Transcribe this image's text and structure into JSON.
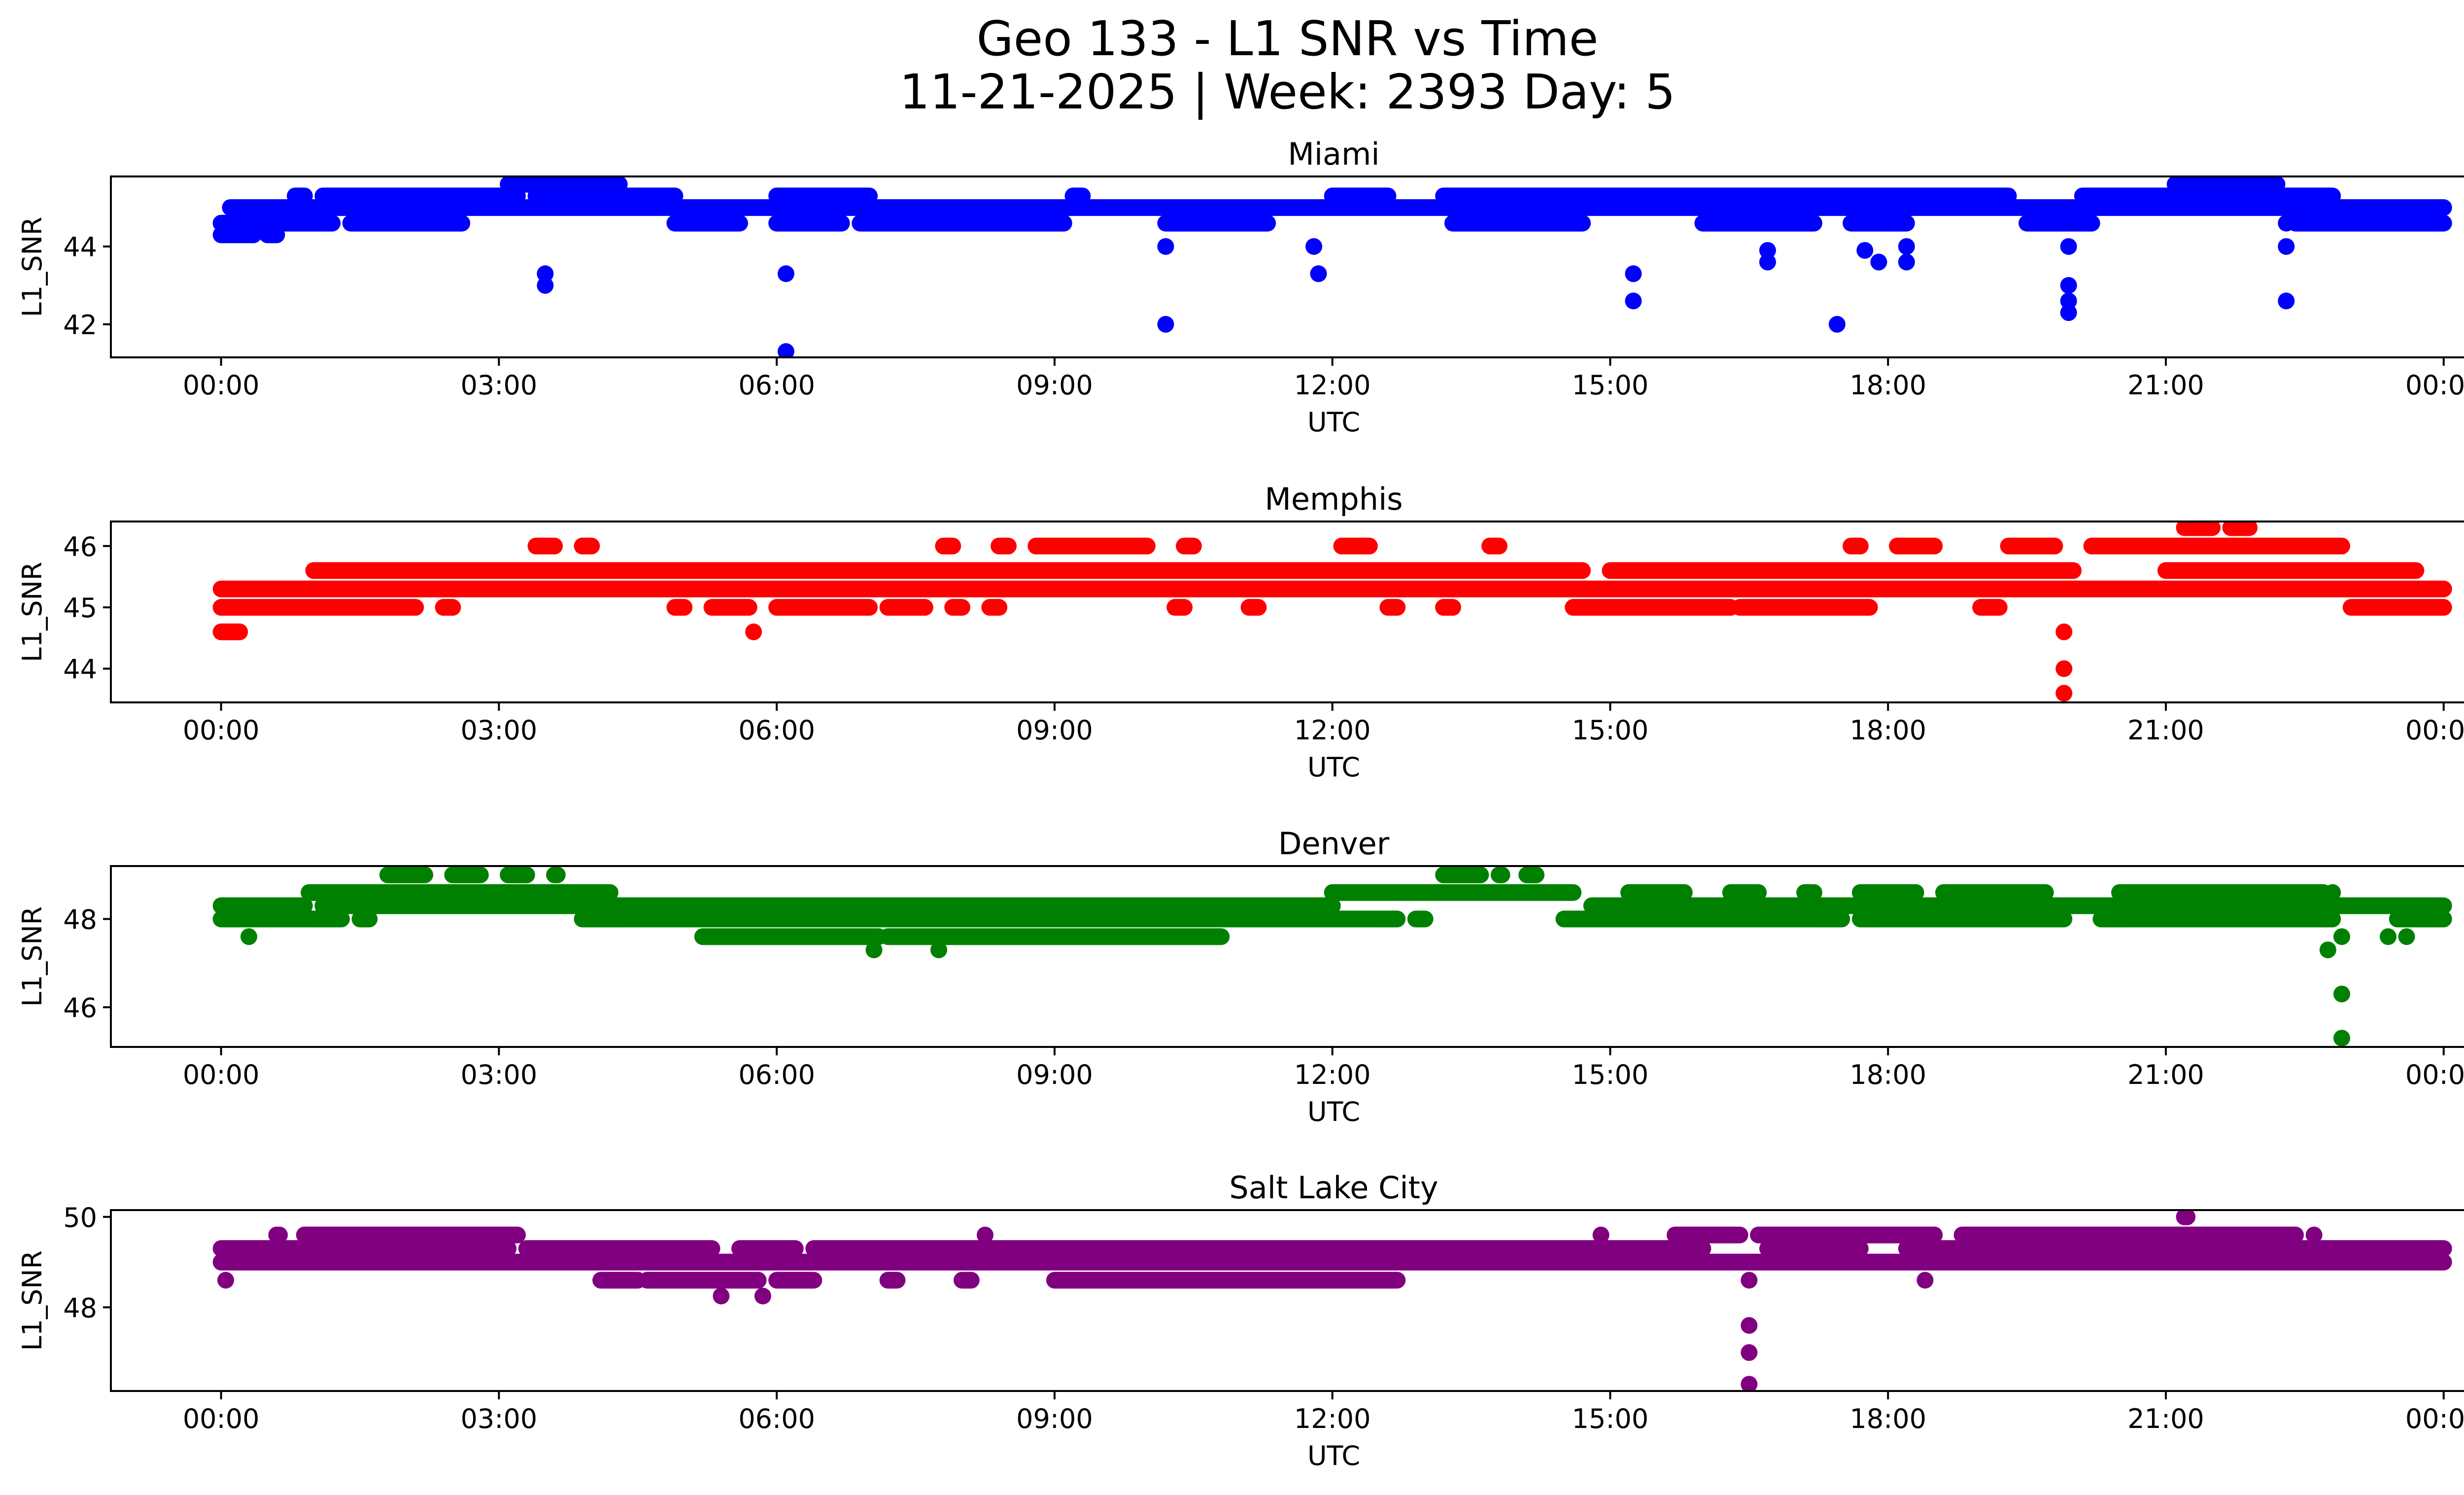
{
  "figure": {
    "title_line1": "Geo 133 - L1 SNR vs Time",
    "title_line2": "11-21-2025 | Week: 2393 Day: 5"
  },
  "chart_data": [
    {
      "type": "scatter",
      "title": "Miami",
      "xlabel": "UTC",
      "ylabel": "L1_SNR",
      "color": "#0000ff",
      "xlim_hours": [
        -1.19,
        25.22
      ],
      "ylim": [
        41.15,
        45.8
      ],
      "yticks": [
        42,
        44
      ],
      "ytick_labels": [
        "42",
        "44"
      ],
      "xticks_hours": [
        0,
        3,
        6,
        9,
        12,
        15,
        18,
        21,
        24
      ],
      "xtick_labels": [
        "00:00",
        "03:00",
        "06:00",
        "09:00",
        "12:00",
        "15:00",
        "18:00",
        "21:00",
        "00:00"
      ],
      "bands": [
        {
          "y": 44.3,
          "ranges": [
            [
              0.0,
              0.35
            ],
            [
              0.5,
              0.6
            ]
          ]
        },
        {
          "y": 44.6,
          "ranges": [
            [
              0.0,
              1.2
            ],
            [
              1.4,
              2.6
            ],
            [
              4.9,
              5.6
            ],
            [
              6.0,
              6.7
            ],
            [
              6.9,
              9.1
            ],
            [
              10.2,
              11.3
            ],
            [
              13.3,
              14.7
            ],
            [
              16.0,
              17.2
            ],
            [
              17.6,
              18.2
            ],
            [
              19.5,
              20.2
            ],
            [
              22.4,
              24.0
            ]
          ]
        },
        {
          "y": 45.0,
          "ranges": [
            [
              0.1,
              24.0
            ]
          ]
        },
        {
          "y": 45.3,
          "ranges": [
            [
              0.8,
              0.9
            ],
            [
              1.1,
              3.2
            ],
            [
              3.4,
              4.9
            ],
            [
              6.0,
              7.0
            ],
            [
              9.2,
              9.3
            ],
            [
              12.0,
              12.6
            ],
            [
              13.2,
              19.3
            ],
            [
              20.1,
              22.8
            ]
          ]
        },
        {
          "y": 45.6,
          "ranges": [
            [
              3.1,
              4.3
            ],
            [
              21.1,
              22.2
            ]
          ]
        }
      ],
      "outliers": [
        {
          "x": 3.5,
          "y": 43.3
        },
        {
          "x": 3.5,
          "y": 43.0
        },
        {
          "x": 6.1,
          "y": 43.3
        },
        {
          "x": 6.1,
          "y": 41.3
        },
        {
          "x": 10.2,
          "y": 44.0
        },
        {
          "x": 10.2,
          "y": 42.0
        },
        {
          "x": 11.8,
          "y": 44.0
        },
        {
          "x": 11.85,
          "y": 43.3
        },
        {
          "x": 15.25,
          "y": 43.3
        },
        {
          "x": 15.25,
          "y": 42.6
        },
        {
          "x": 16.7,
          "y": 43.9
        },
        {
          "x": 16.7,
          "y": 43.6
        },
        {
          "x": 17.45,
          "y": 42.0
        },
        {
          "x": 17.75,
          "y": 43.9
        },
        {
          "x": 17.9,
          "y": 43.6
        },
        {
          "x": 18.2,
          "y": 44.0
        },
        {
          "x": 18.2,
          "y": 43.6
        },
        {
          "x": 19.95,
          "y": 44.0
        },
        {
          "x": 19.95,
          "y": 43.0
        },
        {
          "x": 19.95,
          "y": 42.6
        },
        {
          "x": 19.95,
          "y": 42.3
        },
        {
          "x": 22.3,
          "y": 44.6
        },
        {
          "x": 22.3,
          "y": 44.0
        },
        {
          "x": 22.3,
          "y": 42.6
        }
      ]
    },
    {
      "type": "scatter",
      "title": "Memphis",
      "xlabel": "UTC",
      "ylabel": "L1_SNR",
      "color": "#ff0000",
      "xlim_hours": [
        -1.19,
        25.22
      ],
      "ylim": [
        43.45,
        46.4
      ],
      "yticks": [
        44,
        45,
        46
      ],
      "ytick_labels": [
        "44",
        "45",
        "46"
      ],
      "xticks_hours": [
        0,
        3,
        6,
        9,
        12,
        15,
        18,
        21,
        24
      ],
      "xtick_labels": [
        "00:00",
        "03:00",
        "06:00",
        "09:00",
        "12:00",
        "15:00",
        "18:00",
        "21:00",
        "00:00"
      ],
      "bands": [
        {
          "y": 44.6,
          "ranges": [
            [
              0.0,
              0.2
            ]
          ]
        },
        {
          "y": 45.0,
          "ranges": [
            [
              0.0,
              2.1
            ],
            [
              2.4,
              2.5
            ],
            [
              4.9,
              5.0
            ],
            [
              5.3,
              5.7
            ],
            [
              6.0,
              7.0
            ],
            [
              7.2,
              7.6
            ],
            [
              7.9,
              8.0
            ],
            [
              8.3,
              8.4
            ],
            [
              10.3,
              10.4
            ],
            [
              11.1,
              11.2
            ],
            [
              12.6,
              12.7
            ],
            [
              13.2,
              13.3
            ],
            [
              14.6,
              16.3
            ],
            [
              16.4,
              17.8
            ],
            [
              19.0,
              19.2
            ],
            [
              23.0,
              24.0
            ]
          ]
        },
        {
          "y": 45.3,
          "ranges": [
            [
              0.0,
              24.0
            ]
          ]
        },
        {
          "y": 45.6,
          "ranges": [
            [
              1.0,
              14.7
            ],
            [
              15.0,
              20.0
            ],
            [
              21.0,
              23.7
            ]
          ]
        },
        {
          "y": 46.0,
          "ranges": [
            [
              3.4,
              3.6
            ],
            [
              3.9,
              4.0
            ],
            [
              7.8,
              7.9
            ],
            [
              8.4,
              8.5
            ],
            [
              8.8,
              10.0
            ],
            [
              10.4,
              10.5
            ],
            [
              12.1,
              12.4
            ],
            [
              13.7,
              13.8
            ],
            [
              17.6,
              17.7
            ],
            [
              18.1,
              18.5
            ],
            [
              19.3,
              19.8
            ],
            [
              20.2,
              22.9
            ]
          ]
        },
        {
          "y": 46.3,
          "ranges": [
            [
              21.2,
              21.5
            ],
            [
              21.7,
              21.9
            ]
          ]
        }
      ],
      "outliers": [
        {
          "x": 5.75,
          "y": 44.6
        },
        {
          "x": 19.9,
          "y": 44.6
        },
        {
          "x": 19.9,
          "y": 44.0
        },
        {
          "x": 19.9,
          "y": 43.6
        }
      ]
    },
    {
      "type": "scatter",
      "title": "Denver",
      "xlabel": "UTC",
      "ylabel": "L1_SNR",
      "color": "#008000",
      "xlim_hours": [
        -1.19,
        25.22
      ],
      "ylim": [
        45.1,
        49.2
      ],
      "yticks": [
        46,
        48
      ],
      "ytick_labels": [
        "46",
        "48"
      ],
      "xticks_hours": [
        0,
        3,
        6,
        9,
        12,
        15,
        18,
        21,
        24
      ],
      "xtick_labels": [
        "00:00",
        "03:00",
        "06:00",
        "09:00",
        "12:00",
        "15:00",
        "18:00",
        "21:00",
        "00:00"
      ],
      "bands": [
        {
          "y": 47.6,
          "ranges": [
            [
              5.2,
              7.1
            ],
            [
              7.2,
              10.8
            ]
          ]
        },
        {
          "y": 48.0,
          "ranges": [
            [
              0.0,
              1.3
            ],
            [
              1.5,
              1.6
            ],
            [
              3.9,
              12.7
            ],
            [
              12.9,
              13.0
            ],
            [
              14.5,
              17.5
            ],
            [
              17.7,
              19.9
            ],
            [
              20.3,
              22.8
            ],
            [
              23.5,
              24.0
            ]
          ]
        },
        {
          "y": 48.3,
          "ranges": [
            [
              0.0,
              0.9
            ],
            [
              1.1,
              12.0
            ],
            [
              14.8,
              24.0
            ]
          ]
        },
        {
          "y": 48.6,
          "ranges": [
            [
              0.95,
              4.2
            ],
            [
              12.0,
              14.6
            ],
            [
              15.2,
              15.8
            ],
            [
              16.3,
              16.6
            ],
            [
              17.1,
              17.2
            ],
            [
              17.7,
              18.3
            ],
            [
              18.6,
              19.7
            ],
            [
              20.5,
              22.7
            ]
          ]
        },
        {
          "y": 49.0,
          "ranges": [
            [
              1.8,
              2.2
            ],
            [
              2.5,
              2.8
            ],
            [
              3.1,
              3.3
            ],
            [
              3.6,
              3.65
            ],
            [
              13.2,
              13.6
            ],
            [
              13.8,
              13.85
            ],
            [
              14.1,
              14.2
            ]
          ]
        }
      ],
      "outliers": [
        {
          "x": 0.3,
          "y": 47.6
        },
        {
          "x": 7.05,
          "y": 47.3
        },
        {
          "x": 7.75,
          "y": 47.3
        },
        {
          "x": 22.75,
          "y": 47.3
        },
        {
          "x": 22.8,
          "y": 48.6
        },
        {
          "x": 22.9,
          "y": 47.6
        },
        {
          "x": 23.4,
          "y": 47.6
        },
        {
          "x": 23.6,
          "y": 47.6
        },
        {
          "x": 22.9,
          "y": 46.3
        },
        {
          "x": 22.9,
          "y": 45.3
        }
      ]
    },
    {
      "type": "scatter",
      "title": "Salt Lake City",
      "xlabel": "UTC",
      "ylabel": "L1_SNR",
      "color": "#800080",
      "xlim_hours": [
        -1.19,
        25.22
      ],
      "ylim": [
        46.15,
        50.15
      ],
      "yticks": [
        48,
        50
      ],
      "ytick_labels": [
        "48",
        "50"
      ],
      "xticks_hours": [
        0,
        3,
        6,
        9,
        12,
        15,
        18,
        21,
        24
      ],
      "xtick_labels": [
        "00:00",
        "03:00",
        "06:00",
        "09:00",
        "12:00",
        "15:00",
        "18:00",
        "21:00",
        "00:00"
      ],
      "bands": [
        {
          "y": 48.6,
          "ranges": [
            [
              4.1,
              4.5
            ],
            [
              4.6,
              5.8
            ],
            [
              6.0,
              6.4
            ],
            [
              7.2,
              7.3
            ],
            [
              8.0,
              8.1
            ],
            [
              9.0,
              12.7
            ]
          ]
        },
        {
          "y": 49.0,
          "ranges": [
            [
              0.0,
              24.0
            ]
          ]
        },
        {
          "y": 49.3,
          "ranges": [
            [
              0.0,
              3.1
            ],
            [
              3.3,
              5.3
            ],
            [
              5.6,
              6.2
            ],
            [
              6.4,
              16.0
            ],
            [
              16.7,
              17.7
            ],
            [
              18.2,
              24.0
            ]
          ]
        },
        {
          "y": 49.6,
          "ranges": [
            [
              0.6,
              0.65
            ],
            [
              0.9,
              3.2
            ],
            [
              15.7,
              16.4
            ],
            [
              16.6,
              18.5
            ],
            [
              18.8,
              22.4
            ]
          ]
        },
        {
          "y": 50.0,
          "ranges": [
            [
              21.2,
              21.25
            ]
          ]
        }
      ],
      "outliers": [
        {
          "x": 0.05,
          "y": 48.6
        },
        {
          "x": 5.4,
          "y": 48.25
        },
        {
          "x": 5.85,
          "y": 48.25
        },
        {
          "x": 8.25,
          "y": 49.6
        },
        {
          "x": 14.9,
          "y": 49.6
        },
        {
          "x": 16.5,
          "y": 48.6
        },
        {
          "x": 16.5,
          "y": 47.6
        },
        {
          "x": 16.5,
          "y": 47.0
        },
        {
          "x": 16.5,
          "y": 46.3
        },
        {
          "x": 18.4,
          "y": 48.6
        },
        {
          "x": 22.6,
          "y": 49.6
        }
      ]
    }
  ]
}
